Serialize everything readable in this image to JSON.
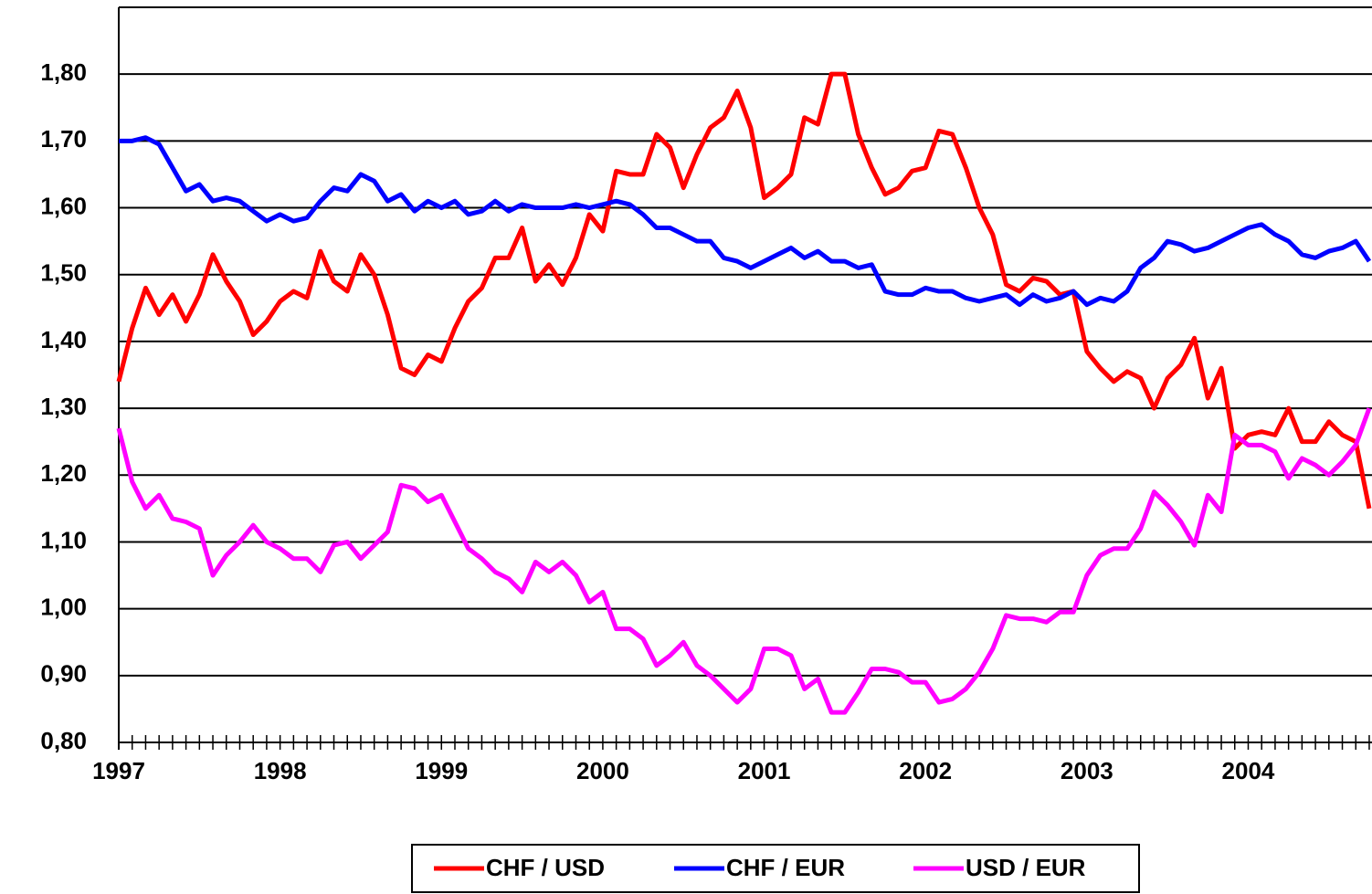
{
  "chart_data": {
    "type": "line",
    "categories": [
      "1997",
      null,
      null,
      null,
      null,
      null,
      null,
      null,
      null,
      null,
      null,
      null,
      "1998",
      null,
      null,
      null,
      null,
      null,
      null,
      null,
      null,
      null,
      null,
      null,
      "1999",
      null,
      null,
      null,
      null,
      null,
      null,
      null,
      null,
      null,
      null,
      null,
      "2000",
      null,
      null,
      null,
      null,
      null,
      null,
      null,
      null,
      null,
      null,
      null,
      "2001",
      null,
      null,
      null,
      null,
      null,
      null,
      null,
      null,
      null,
      null,
      null,
      "2002",
      null,
      null,
      null,
      null,
      null,
      null,
      null,
      null,
      null,
      null,
      null,
      "2003",
      null,
      null,
      null,
      null,
      null,
      null,
      null,
      null,
      null,
      null,
      null,
      "2004",
      null,
      null,
      null,
      null,
      null,
      null,
      null,
      null,
      null
    ],
    "series": [
      {
        "name": "CHF / USD",
        "color": "#ff0000",
        "values": [
          1.34,
          1.42,
          1.48,
          1.44,
          1.47,
          1.43,
          1.47,
          1.53,
          1.49,
          1.46,
          1.41,
          1.43,
          1.46,
          1.475,
          1.465,
          1.535,
          1.49,
          1.475,
          1.53,
          1.5,
          1.44,
          1.36,
          1.35,
          1.38,
          1.37,
          1.42,
          1.46,
          1.48,
          1.525,
          1.525,
          1.57,
          1.49,
          1.515,
          1.485,
          1.525,
          1.59,
          1.565,
          1.655,
          1.65,
          1.65,
          1.71,
          1.69,
          1.63,
          1.68,
          1.72,
          1.735,
          1.775,
          1.72,
          1.615,
          1.63,
          1.65,
          1.735,
          1.725,
          1.8,
          1.8,
          1.71,
          1.66,
          1.62,
          1.63,
          1.655,
          1.66,
          1.715,
          1.71,
          1.66,
          1.6,
          1.56,
          1.485,
          1.475,
          1.495,
          1.49,
          1.47,
          1.475,
          1.385,
          1.36,
          1.34,
          1.355,
          1.345,
          1.3,
          1.345,
          1.365,
          1.405,
          1.315,
          1.36,
          1.24,
          1.26,
          1.265,
          1.26,
          1.3,
          1.25,
          1.25,
          1.28,
          1.26,
          1.25,
          1.15
        ]
      },
      {
        "name": "CHF / EUR",
        "color": "#0000ff",
        "values": [
          1.7,
          1.7,
          1.705,
          1.695,
          1.66,
          1.625,
          1.635,
          1.61,
          1.615,
          1.61,
          1.595,
          1.58,
          1.59,
          1.58,
          1.585,
          1.61,
          1.63,
          1.625,
          1.65,
          1.64,
          1.61,
          1.62,
          1.595,
          1.61,
          1.6,
          1.61,
          1.59,
          1.595,
          1.61,
          1.595,
          1.605,
          1.6,
          1.6,
          1.6,
          1.605,
          1.6,
          1.605,
          1.61,
          1.605,
          1.59,
          1.57,
          1.57,
          1.56,
          1.55,
          1.55,
          1.525,
          1.52,
          1.51,
          1.52,
          1.53,
          1.54,
          1.525,
          1.535,
          1.52,
          1.52,
          1.51,
          1.515,
          1.475,
          1.47,
          1.47,
          1.48,
          1.475,
          1.475,
          1.465,
          1.46,
          1.465,
          1.47,
          1.455,
          1.47,
          1.46,
          1.465,
          1.475,
          1.455,
          1.465,
          1.46,
          1.475,
          1.51,
          1.525,
          1.55,
          1.545,
          1.535,
          1.54,
          1.55,
          1.56,
          1.57,
          1.575,
          1.56,
          1.55,
          1.53,
          1.525,
          1.535,
          1.54,
          1.55,
          1.52
        ]
      },
      {
        "name": "USD / EUR",
        "color": "#ff00ff",
        "values": [
          1.27,
          1.19,
          1.15,
          1.17,
          1.135,
          1.13,
          1.12,
          1.05,
          1.08,
          1.1,
          1.125,
          1.1,
          1.09,
          1.075,
          1.075,
          1.055,
          1.095,
          1.1,
          1.075,
          1.095,
          1.115,
          1.185,
          1.18,
          1.16,
          1.17,
          1.13,
          1.09,
          1.075,
          1.055,
          1.045,
          1.025,
          1.07,
          1.055,
          1.07,
          1.05,
          1.01,
          1.025,
          0.97,
          0.97,
          0.955,
          0.915,
          0.93,
          0.95,
          0.915,
          0.9,
          0.88,
          0.86,
          0.88,
          0.94,
          0.94,
          0.93,
          0.88,
          0.895,
          0.845,
          0.845,
          0.875,
          0.91,
          0.91,
          0.905,
          0.89,
          0.89,
          0.86,
          0.865,
          0.88,
          0.905,
          0.94,
          0.99,
          0.985,
          0.985,
          0.98,
          0.995,
          0.995,
          1.05,
          1.08,
          1.09,
          1.09,
          1.12,
          1.175,
          1.155,
          1.13,
          1.095,
          1.17,
          1.145,
          1.26,
          1.245,
          1.245,
          1.235,
          1.195,
          1.225,
          1.215,
          1.2,
          1.22,
          1.245,
          1.3
        ]
      }
    ],
    "ylim": [
      0.8,
      1.9
    ],
    "yticks": [
      {
        "value": 0.8,
        "label": "0,80"
      },
      {
        "value": 0.9,
        "label": "0,90"
      },
      {
        "value": 1.0,
        "label": "1,00"
      },
      {
        "value": 1.1,
        "label": "1,10"
      },
      {
        "value": 1.2,
        "label": "1,20"
      },
      {
        "value": 1.3,
        "label": "1,30"
      },
      {
        "value": 1.4,
        "label": "1,40"
      },
      {
        "value": 1.5,
        "label": "1,50"
      },
      {
        "value": 1.6,
        "label": "1,60"
      },
      {
        "value": 1.7,
        "label": "1,70"
      },
      {
        "value": 1.8,
        "label": "1,80"
      }
    ],
    "grid": true,
    "legend": "bottom"
  }
}
